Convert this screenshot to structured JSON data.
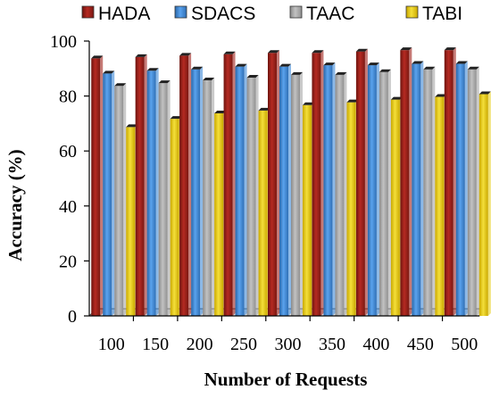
{
  "chart_data": {
    "type": "bar",
    "title": "",
    "xlabel": "Number of Requests",
    "ylabel": "Accuracy (%)",
    "categories": [
      "100",
      "150",
      "200",
      "250",
      "300",
      "350",
      "400",
      "450",
      "500"
    ],
    "yticks": [
      "0",
      "20",
      "40",
      "60",
      "80",
      "100"
    ],
    "ylim": [
      0,
      100
    ],
    "grid": false,
    "legend_position": "top",
    "series": [
      {
        "name": "HADA",
        "color": "#a0211b",
        "values": [
          95,
          95.5,
          96,
          96.5,
          97,
          97,
          97.5,
          98,
          98
        ]
      },
      {
        "name": "SDACS",
        "color": "#3f8ad8",
        "values": [
          89.5,
          90.5,
          91,
          92,
          92,
          92.5,
          92.5,
          93,
          93
        ]
      },
      {
        "name": "TAAC",
        "color": "#a6a6a6",
        "values": [
          85,
          86,
          87,
          88,
          89,
          89,
          90,
          91,
          91
        ]
      },
      {
        "name": "TABI",
        "color": "#e8cf15",
        "values": [
          70,
          73,
          75,
          76,
          78,
          79,
          80,
          81,
          82
        ]
      }
    ]
  }
}
